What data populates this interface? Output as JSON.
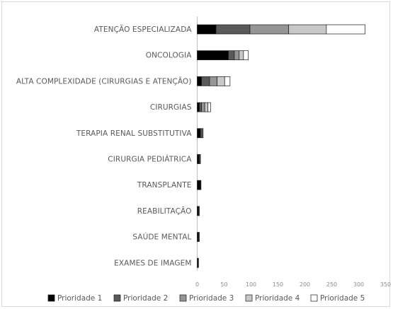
{
  "chart_data": {
    "type": "bar",
    "orientation": "horizontal",
    "stacked": true,
    "categories": [
      "ATENÇÃO ESPECIALIZADA",
      "ONCOLOGIA",
      "ALTA COMPLEXIDADE (CIRURGIAS E ATENÇÃO)",
      "CIRURGIAS",
      "TERAPIA RENAL SUBSTITUTIVA",
      "CIRURGIA PEDIÁTRICA",
      "TRANSPLANTE",
      "REABILITAÇÃO",
      "SAÚDE MENTAL",
      "EXAMES DE IMAGEM"
    ],
    "series": [
      {
        "name": "Prioridade 1",
        "color": "#000000",
        "values": [
          35,
          58,
          8,
          4,
          6,
          3,
          6,
          2,
          2,
          1
        ]
      },
      {
        "name": "Prioridade 2",
        "color": "#595959",
        "values": [
          63,
          11,
          15,
          4,
          3,
          1,
          1,
          1,
          1,
          0.5
        ]
      },
      {
        "name": "Prioridade 3",
        "color": "#959595",
        "values": [
          72,
          9,
          14,
          6,
          2,
          1,
          0,
          1,
          1,
          0.5
        ]
      },
      {
        "name": "Prioridade 4",
        "color": "#c8c8c8",
        "values": [
          70,
          8,
          14,
          6,
          0,
          1,
          0,
          0,
          0,
          0
        ]
      },
      {
        "name": "Prioridade 5",
        "color": "#ffffff",
        "values": [
          72,
          9,
          10,
          5,
          0,
          0,
          0,
          0,
          0,
          0
        ]
      }
    ],
    "xlim": [
      0,
      350
    ],
    "xticks": [
      0,
      50,
      100,
      150,
      200,
      250,
      300,
      350
    ],
    "grid": false,
    "legend_position": "bottom"
  }
}
